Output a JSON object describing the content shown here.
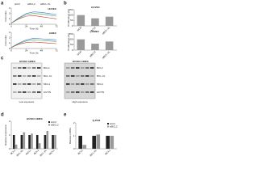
{
  "panels": [
    "a",
    "b",
    "c",
    "d",
    "e"
  ],
  "chart_data": [
    {
      "type": "line",
      "title": "HUVEC",
      "xlabel": "Time (h)",
      "ylabel": "Cell index",
      "x": [
        0,
        12,
        24,
        36,
        48,
        60,
        72
      ],
      "xlim": [
        0,
        72
      ],
      "xticks": [
        0,
        24,
        48,
        72
      ],
      "ylim": [
        0,
        3
      ],
      "yticks": [
        0,
        1,
        2,
        3
      ],
      "legend": true,
      "series": [
        {
          "name": "siCtrl",
          "color": "#3b6fd6",
          "values": [
            0.2,
            1.2,
            2.0,
            2.3,
            2.2,
            2.0,
            1.8
          ]
        },
        {
          "name": "siBCL2",
          "color": "#d93030",
          "values": [
            0.2,
            1.0,
            1.5,
            1.6,
            1.4,
            1.2,
            1.0
          ]
        },
        {
          "name": "siBCL-XL",
          "color": "#2ea84a",
          "values": [
            0.2,
            1.1,
            1.8,
            2.0,
            1.9,
            1.7,
            1.5
          ]
        }
      ]
    },
    {
      "type": "line",
      "title": "HMEC",
      "xlabel": "Time (h)",
      "ylabel": "Cell index",
      "x": [
        0,
        12,
        24,
        36,
        48,
        60,
        72
      ],
      "xlim": [
        0,
        72
      ],
      "xticks": [
        0,
        24,
        48,
        72
      ],
      "ylim": [
        0,
        3
      ],
      "yticks": [
        0,
        1,
        2,
        3
      ],
      "legend": false,
      "series": [
        {
          "color": "#3b6fd6",
          "values": [
            0.2,
            1.0,
            1.6,
            1.9,
            1.8,
            1.7,
            1.6
          ]
        },
        {
          "color": "#d93030",
          "values": [
            0.2,
            0.8,
            1.1,
            1.2,
            1.1,
            1.0,
            0.9
          ]
        },
        {
          "color": "#2ea84a",
          "values": [
            0.2,
            0.9,
            1.4,
            1.6,
            1.5,
            1.4,
            1.3
          ]
        }
      ]
    },
    {
      "type": "bar",
      "title": "HUVEC",
      "ylabel": "Proliferation (%)",
      "categories": [
        "siCtrl",
        "siBCL2",
        "siBCL-XL"
      ],
      "ylim": [
        0,
        150
      ],
      "yticks": [
        0,
        50,
        100,
        150
      ],
      "legend": false,
      "series": [
        {
          "color": "#9a9a9a",
          "values": [
            100,
            70,
            85
          ]
        }
      ]
    },
    {
      "type": "bar",
      "title": "HMEC",
      "ylabel": "Proliferation (%)",
      "categories": [
        "siCtrl",
        "siBCL2",
        "siBCL-XL"
      ],
      "ylim": [
        0,
        150
      ],
      "yticks": [
        0,
        50,
        100,
        150
      ],
      "legend": false,
      "series": [
        {
          "color": "#9a9a9a",
          "values": [
            100,
            60,
            80
          ]
        }
      ]
    },
    {
      "type": "bar",
      "title": "HUVEC   HMEC",
      "ylabel": "Relative expression",
      "categories": [
        "BCL2",
        "BCL-XL",
        "MCL1",
        "BCL2",
        "BCL-XL",
        "MCL1"
      ],
      "ylim": [
        0,
        2
      ],
      "yticks": [
        0,
        1,
        2
      ],
      "legend": true,
      "series": [
        {
          "name": "siCtrl",
          "color": "#222222",
          "values": [
            1,
            1,
            1,
            1,
            1,
            1
          ]
        },
        {
          "name": "siBCL2",
          "color": "#9a9a9a",
          "values": [
            0.3,
            1.2,
            1.1,
            0.4,
            1.3,
            1.0
          ]
        }
      ]
    },
    {
      "type": "bar",
      "title": "Q-PCR",
      "ylabel": "Relative mRNA",
      "categories": [
        "BCL2",
        "BCL-XL",
        "MCL1"
      ],
      "ylim": [
        0,
        2
      ],
      "yticks": [
        0,
        1,
        2
      ],
      "legend": true,
      "series": [
        {
          "name": "siCtrl",
          "color": "#222222",
          "values": [
            1,
            1,
            1
          ]
        },
        {
          "name": "siBCL2",
          "color": "#9a9a9a",
          "values": [
            0.3,
            1.1,
            1.0
          ]
        }
      ]
    }
  ],
  "blots": [
    {
      "title": "HUVEC  HMEC",
      "proteins": [
        "BCL2",
        "BCL-XL",
        "MCL1",
        "ACTIN"
      ],
      "footer": "Low exposure"
    },
    {
      "title": "HUVEC  HMEC",
      "proteins": [
        "BCL2",
        "BCL-XL",
        "MCL1",
        "ACTIN"
      ],
      "footer": "High exposure"
    }
  ]
}
